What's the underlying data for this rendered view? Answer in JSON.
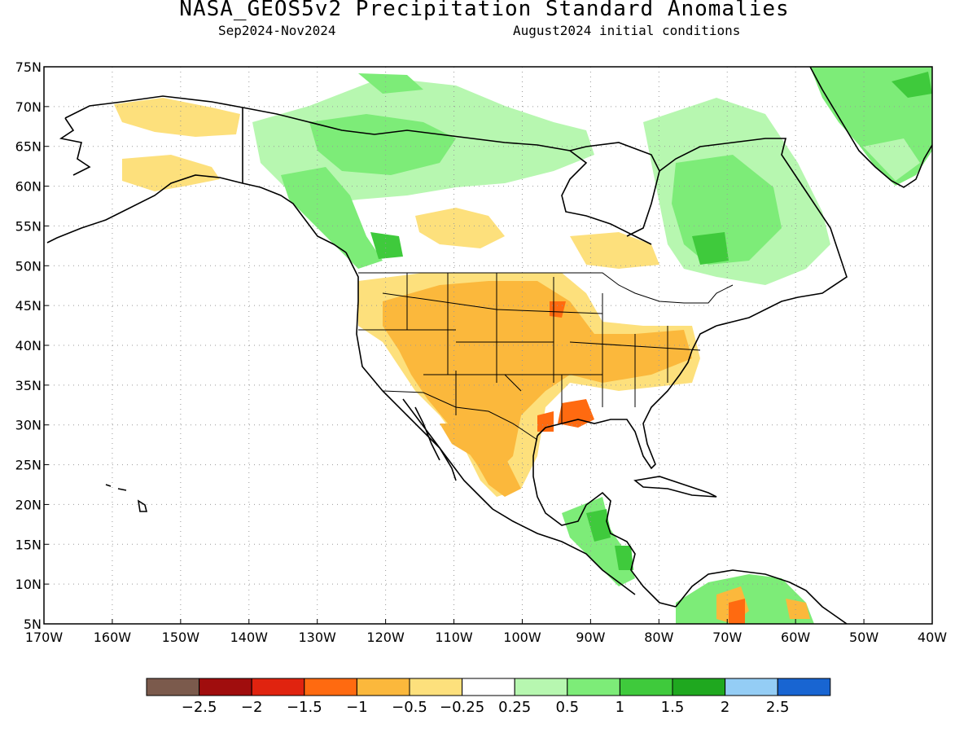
{
  "header": {
    "title": "NASA_GEOS5v2 Precipitation Standard Anomalies",
    "period": "Sep2024-Nov2024",
    "init": "August2024 initial conditions"
  },
  "map": {
    "lon_range": [
      -170,
      -40
    ],
    "lat_range": [
      5,
      75
    ],
    "lat_ticks": [
      "75N",
      "70N",
      "65N",
      "60N",
      "55N",
      "50N",
      "45N",
      "40N",
      "35N",
      "30N",
      "25N",
      "20N",
      "15N",
      "10N",
      "5N"
    ],
    "lon_ticks": [
      "170W",
      "160W",
      "150W",
      "140W",
      "130W",
      "120W",
      "110W",
      "100W",
      "90W",
      "80W",
      "70W",
      "60W",
      "50W",
      "40W"
    ],
    "grid": true
  },
  "colorbar": {
    "colors": [
      "#7b5a4c",
      "#a00d0d",
      "#e0230f",
      "#ff6a10",
      "#fbb83c",
      "#fde07c",
      "#ffffff",
      "#b7f7b0",
      "#7dec78",
      "#3fca3c",
      "#1fa81f",
      "#94cdf5",
      "#1865d2"
    ],
    "labels": [
      "-2.5",
      "-2",
      "-1.5",
      "-1",
      "-0.5",
      "-0.25",
      "0.25",
      "0.5",
      "1",
      "1.5",
      "2",
      "2.5"
    ]
  }
}
